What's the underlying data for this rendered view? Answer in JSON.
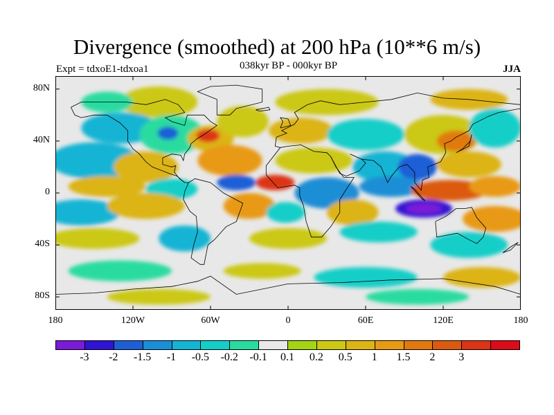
{
  "title": "Divergence (smoothed) at 200 hPa (10**6 m/s)",
  "subtitle": "038kyr BP - 000kyr BP",
  "experiment": "Expt = tdxoE1-tdxoa1",
  "season": "JJA",
  "lat_ticks": [
    "80N",
    "40N",
    "0",
    "40S",
    "80S"
  ],
  "lat_values": [
    80,
    40,
    0,
    -40,
    -80
  ],
  "lon_ticks": [
    "180",
    "120W",
    "60W",
    "0",
    "60E",
    "120E",
    "180"
  ],
  "lon_values": [
    -180,
    -120,
    -60,
    0,
    60,
    120,
    180
  ],
  "colorbar": {
    "colors": [
      "#7a1bd8",
      "#3014d4",
      "#1e5fd6",
      "#1a8ed6",
      "#14b4d4",
      "#14cec8",
      "#2adba0",
      "#e8e8e8",
      "#a4d414",
      "#ccc814",
      "#dcb414",
      "#e89a14",
      "#e07a10",
      "#dc5a10",
      "#dc3416",
      "#dc0c1a"
    ],
    "labels": [
      "-3",
      "-2",
      "-1.5",
      "-1",
      "-0.5",
      "-0.2",
      "-0.1",
      "0.1",
      "0.2",
      "0.5",
      "1",
      "1.5",
      "2",
      "3"
    ]
  },
  "fields": {
    "background": "#e8e8e8",
    "blobs": [
      {
        "lon": -100,
        "lat": 70,
        "rx": 30,
        "ry": 12,
        "level": 9
      },
      {
        "lon": -140,
        "lat": 70,
        "rx": 20,
        "ry": 8,
        "level": 6
      },
      {
        "lon": 30,
        "lat": 70,
        "rx": 40,
        "ry": 10,
        "level": 9
      },
      {
        "lon": 140,
        "lat": 72,
        "rx": 30,
        "ry": 8,
        "level": 10
      },
      {
        "lon": -130,
        "lat": 50,
        "rx": 30,
        "ry": 12,
        "level": 4
      },
      {
        "lon": -90,
        "lat": 45,
        "rx": 25,
        "ry": 15,
        "level": 6
      },
      {
        "lon": -93,
        "lat": 46,
        "rx": 8,
        "ry": 5,
        "level": 2
      },
      {
        "lon": -60,
        "lat": 42,
        "rx": 18,
        "ry": 10,
        "level": 10
      },
      {
        "lon": -62,
        "lat": 44,
        "rx": 9,
        "ry": 5,
        "level": 14
      },
      {
        "lon": -35,
        "lat": 55,
        "rx": 20,
        "ry": 12,
        "level": 9
      },
      {
        "lon": 10,
        "lat": 48,
        "rx": 25,
        "ry": 10,
        "level": 10
      },
      {
        "lon": 60,
        "lat": 45,
        "rx": 30,
        "ry": 12,
        "level": 5
      },
      {
        "lon": 120,
        "lat": 45,
        "rx": 30,
        "ry": 15,
        "level": 9
      },
      {
        "lon": 130,
        "lat": 40,
        "rx": 15,
        "ry": 8,
        "level": 12
      },
      {
        "lon": 160,
        "lat": 50,
        "rx": 20,
        "ry": 15,
        "level": 5
      },
      {
        "lon": -150,
        "lat": 25,
        "rx": 35,
        "ry": 14,
        "level": 4
      },
      {
        "lon": -110,
        "lat": 20,
        "rx": 25,
        "ry": 12,
        "level": 10
      },
      {
        "lon": -45,
        "lat": 25,
        "rx": 25,
        "ry": 12,
        "level": 11
      },
      {
        "lon": 20,
        "lat": 25,
        "rx": 30,
        "ry": 10,
        "level": 9
      },
      {
        "lon": 75,
        "lat": 20,
        "rx": 25,
        "ry": 12,
        "level": 4
      },
      {
        "lon": 100,
        "lat": 20,
        "rx": 15,
        "ry": 10,
        "level": 2
      },
      {
        "lon": 140,
        "lat": 22,
        "rx": 25,
        "ry": 10,
        "level": 10
      },
      {
        "lon": -140,
        "lat": 5,
        "rx": 30,
        "ry": 8,
        "level": 10
      },
      {
        "lon": -90,
        "lat": 3,
        "rx": 20,
        "ry": 8,
        "level": 5
      },
      {
        "lon": -40,
        "lat": 8,
        "rx": 15,
        "ry": 6,
        "level": 2
      },
      {
        "lon": -10,
        "lat": 8,
        "rx": 15,
        "ry": 6,
        "level": 14
      },
      {
        "lon": 30,
        "lat": 0,
        "rx": 25,
        "ry": 12,
        "level": 3
      },
      {
        "lon": 80,
        "lat": 5,
        "rx": 25,
        "ry": 8,
        "level": 3
      },
      {
        "lon": 125,
        "lat": 2,
        "rx": 30,
        "ry": 8,
        "level": 13
      },
      {
        "lon": 160,
        "lat": 5,
        "rx": 20,
        "ry": 8,
        "level": 11
      },
      {
        "lon": -160,
        "lat": -15,
        "rx": 30,
        "ry": 10,
        "level": 4
      },
      {
        "lon": -110,
        "lat": -10,
        "rx": 30,
        "ry": 10,
        "level": 10
      },
      {
        "lon": -30,
        "lat": -10,
        "rx": 20,
        "ry": 10,
        "level": 11
      },
      {
        "lon": -2,
        "lat": -15,
        "rx": 15,
        "ry": 8,
        "level": 5
      },
      {
        "lon": 50,
        "lat": -15,
        "rx": 20,
        "ry": 10,
        "level": 10
      },
      {
        "lon": 105,
        "lat": -12,
        "rx": 22,
        "ry": 7,
        "level": 1
      },
      {
        "lon": 105,
        "lat": -12,
        "rx": 14,
        "ry": 4,
        "level": 0
      },
      {
        "lon": 160,
        "lat": -20,
        "rx": 25,
        "ry": 10,
        "level": 11
      },
      {
        "lon": -150,
        "lat": -35,
        "rx": 35,
        "ry": 8,
        "level": 9
      },
      {
        "lon": -80,
        "lat": -35,
        "rx": 20,
        "ry": 10,
        "level": 4
      },
      {
        "lon": 0,
        "lat": -35,
        "rx": 30,
        "ry": 8,
        "level": 9
      },
      {
        "lon": 70,
        "lat": -30,
        "rx": 30,
        "ry": 8,
        "level": 5
      },
      {
        "lon": 140,
        "lat": -40,
        "rx": 30,
        "ry": 10,
        "level": 5
      },
      {
        "lon": -130,
        "lat": -60,
        "rx": 40,
        "ry": 8,
        "level": 6
      },
      {
        "lon": -20,
        "lat": -60,
        "rx": 30,
        "ry": 6,
        "level": 9
      },
      {
        "lon": 60,
        "lat": -65,
        "rx": 40,
        "ry": 8,
        "level": 5
      },
      {
        "lon": 150,
        "lat": -65,
        "rx": 30,
        "ry": 8,
        "level": 10
      },
      {
        "lon": -100,
        "lat": -80,
        "rx": 40,
        "ry": 6,
        "level": 9
      },
      {
        "lon": 100,
        "lat": -80,
        "rx": 40,
        "ry": 6,
        "level": 6
      }
    ]
  },
  "coastlines": [
    [
      [
        -168,
        66
      ],
      [
        -160,
        70
      ],
      [
        -140,
        70
      ],
      [
        -125,
        70
      ],
      [
        -110,
        68
      ],
      [
        -95,
        72
      ],
      [
        -85,
        68
      ],
      [
        -80,
        62
      ],
      [
        -95,
        58
      ],
      [
        -90,
        55
      ],
      [
        -80,
        52
      ],
      [
        -78,
        60
      ],
      [
        -65,
        60
      ],
      [
        -60,
        55
      ],
      [
        -55,
        52
      ],
      [
        -65,
        45
      ],
      [
        -70,
        42
      ],
      [
        -75,
        38
      ],
      [
        -76,
        35
      ],
      [
        -80,
        30
      ],
      [
        -81,
        25
      ],
      [
        -83,
        29
      ],
      [
        -90,
        30
      ],
      [
        -97,
        27
      ],
      [
        -97,
        22
      ],
      [
        -90,
        20
      ],
      [
        -87,
        21
      ],
      [
        -88,
        16
      ],
      [
        -84,
        11
      ],
      [
        -80,
        8
      ],
      [
        -77,
        8
      ],
      [
        -80,
        1
      ],
      [
        -81,
        -5
      ],
      [
        -76,
        -14
      ],
      [
        -71,
        -18
      ],
      [
        -70,
        -30
      ],
      [
        -73,
        -40
      ],
      [
        -75,
        -50
      ],
      [
        -68,
        -55
      ],
      [
        -65,
        -55
      ],
      [
        -62,
        -40
      ],
      [
        -57,
        -36
      ],
      [
        -48,
        -26
      ],
      [
        -40,
        -22
      ],
      [
        -35,
        -8
      ],
      [
        -50,
        0
      ],
      [
        -60,
        8
      ],
      [
        -72,
        11
      ],
      [
        -77,
        8
      ]
    ],
    [
      [
        -80,
        8
      ],
      [
        -86,
        13
      ],
      [
        -92,
        15
      ],
      [
        -105,
        20
      ],
      [
        -110,
        24
      ],
      [
        -115,
        30
      ],
      [
        -120,
        34
      ],
      [
        -124,
        40
      ],
      [
        -124,
        48
      ],
      [
        -130,
        54
      ],
      [
        -140,
        60
      ],
      [
        -150,
        60
      ],
      [
        -160,
        58
      ],
      [
        -165,
        60
      ],
      [
        -168,
        66
      ]
    ],
    [
      [
        -55,
        60
      ],
      [
        -45,
        60
      ],
      [
        -40,
        65
      ],
      [
        -20,
        70
      ],
      [
        -20,
        80
      ],
      [
        -40,
        83
      ],
      [
        -60,
        82
      ],
      [
        -70,
        78
      ],
      [
        -55,
        72
      ],
      [
        -55,
        60
      ]
    ],
    [
      [
        -10,
        36
      ],
      [
        -9,
        43
      ],
      [
        -1,
        46
      ],
      [
        -5,
        48
      ],
      [
        5,
        53
      ],
      [
        8,
        57
      ],
      [
        5,
        62
      ],
      [
        15,
        68
      ],
      [
        25,
        71
      ],
      [
        40,
        68
      ],
      [
        60,
        70
      ],
      [
        80,
        72
      ],
      [
        100,
        77
      ],
      [
        120,
        73
      ],
      [
        140,
        72
      ],
      [
        160,
        70
      ],
      [
        180,
        68
      ]
    ],
    [
      [
        -10,
        36
      ],
      [
        -6,
        35
      ],
      [
        -17,
        21
      ],
      [
        -17,
        14
      ],
      [
        -8,
        4
      ],
      [
        5,
        6
      ],
      [
        9,
        4
      ],
      [
        9,
        -2
      ],
      [
        12,
        -10
      ],
      [
        14,
        -22
      ],
      [
        18,
        -34
      ],
      [
        26,
        -34
      ],
      [
        33,
        -26
      ],
      [
        40,
        -15
      ],
      [
        40,
        -5
      ],
      [
        51,
        12
      ],
      [
        43,
        12
      ],
      [
        37,
        20
      ],
      [
        33,
        28
      ],
      [
        30,
        31
      ],
      [
        20,
        32
      ],
      [
        10,
        37
      ],
      [
        0,
        36
      ],
      [
        -6,
        35
      ]
    ],
    [
      [
        33,
        28
      ],
      [
        40,
        15
      ],
      [
        45,
        13
      ],
      [
        55,
        17
      ],
      [
        60,
        23
      ],
      [
        57,
        26
      ],
      [
        50,
        29
      ],
      [
        48,
        30
      ],
      [
        57,
        26
      ],
      [
        66,
        25
      ],
      [
        72,
        20
      ],
      [
        77,
        8
      ],
      [
        80,
        13
      ],
      [
        86,
        20
      ],
      [
        92,
        22
      ],
      [
        98,
        16
      ],
      [
        98,
        8
      ],
      [
        103,
        2
      ],
      [
        104,
        10
      ],
      [
        109,
        12
      ],
      [
        108,
        20
      ],
      [
        118,
        24
      ],
      [
        122,
        31
      ],
      [
        121,
        38
      ],
      [
        126,
        40
      ],
      [
        130,
        43
      ],
      [
        140,
        48
      ],
      [
        143,
        53
      ],
      [
        155,
        59
      ],
      [
        163,
        62
      ],
      [
        180,
        65
      ]
    ],
    [
      [
        114,
        -22
      ],
      [
        122,
        -18
      ],
      [
        130,
        -12
      ],
      [
        137,
        -12
      ],
      [
        142,
        -11
      ],
      [
        146,
        -19
      ],
      [
        153,
        -27
      ],
      [
        151,
        -34
      ],
      [
        146,
        -39
      ],
      [
        138,
        -35
      ],
      [
        131,
        -31
      ],
      [
        115,
        -34
      ],
      [
        114,
        -22
      ]
    ],
    [
      [
        95,
        5
      ],
      [
        104,
        -5
      ],
      [
        106,
        -6
      ],
      [
        98,
        3
      ],
      [
        95,
        5
      ]
    ],
    [
      [
        130,
        31
      ],
      [
        135,
        34
      ],
      [
        141,
        40
      ],
      [
        142,
        45
      ],
      [
        140,
        36
      ],
      [
        130,
        31
      ]
    ],
    [
      [
        -6,
        50
      ],
      [
        -4,
        55
      ],
      [
        -6,
        58
      ],
      [
        0,
        57
      ],
      [
        2,
        52
      ],
      [
        -6,
        50
      ]
    ],
    [
      [
        166,
        -46
      ],
      [
        173,
        -41
      ],
      [
        178,
        -38
      ],
      [
        172,
        -44
      ],
      [
        166,
        -46
      ]
    ],
    [
      [
        -180,
        -78
      ],
      [
        -150,
        -77
      ],
      [
        -120,
        -74
      ],
      [
        -90,
        -72
      ],
      [
        -70,
        -68
      ],
      [
        -60,
        -64
      ],
      [
        -40,
        -78
      ],
      [
        0,
        -70
      ],
      [
        40,
        -69
      ],
      [
        80,
        -67
      ],
      [
        120,
        -66
      ],
      [
        160,
        -72
      ],
      [
        180,
        -78
      ]
    ],
    [
      [
        -25,
        64
      ],
      [
        -15,
        66
      ],
      [
        -14,
        64
      ],
      [
        -22,
        63
      ],
      [
        -25,
        64
      ]
    ]
  ]
}
